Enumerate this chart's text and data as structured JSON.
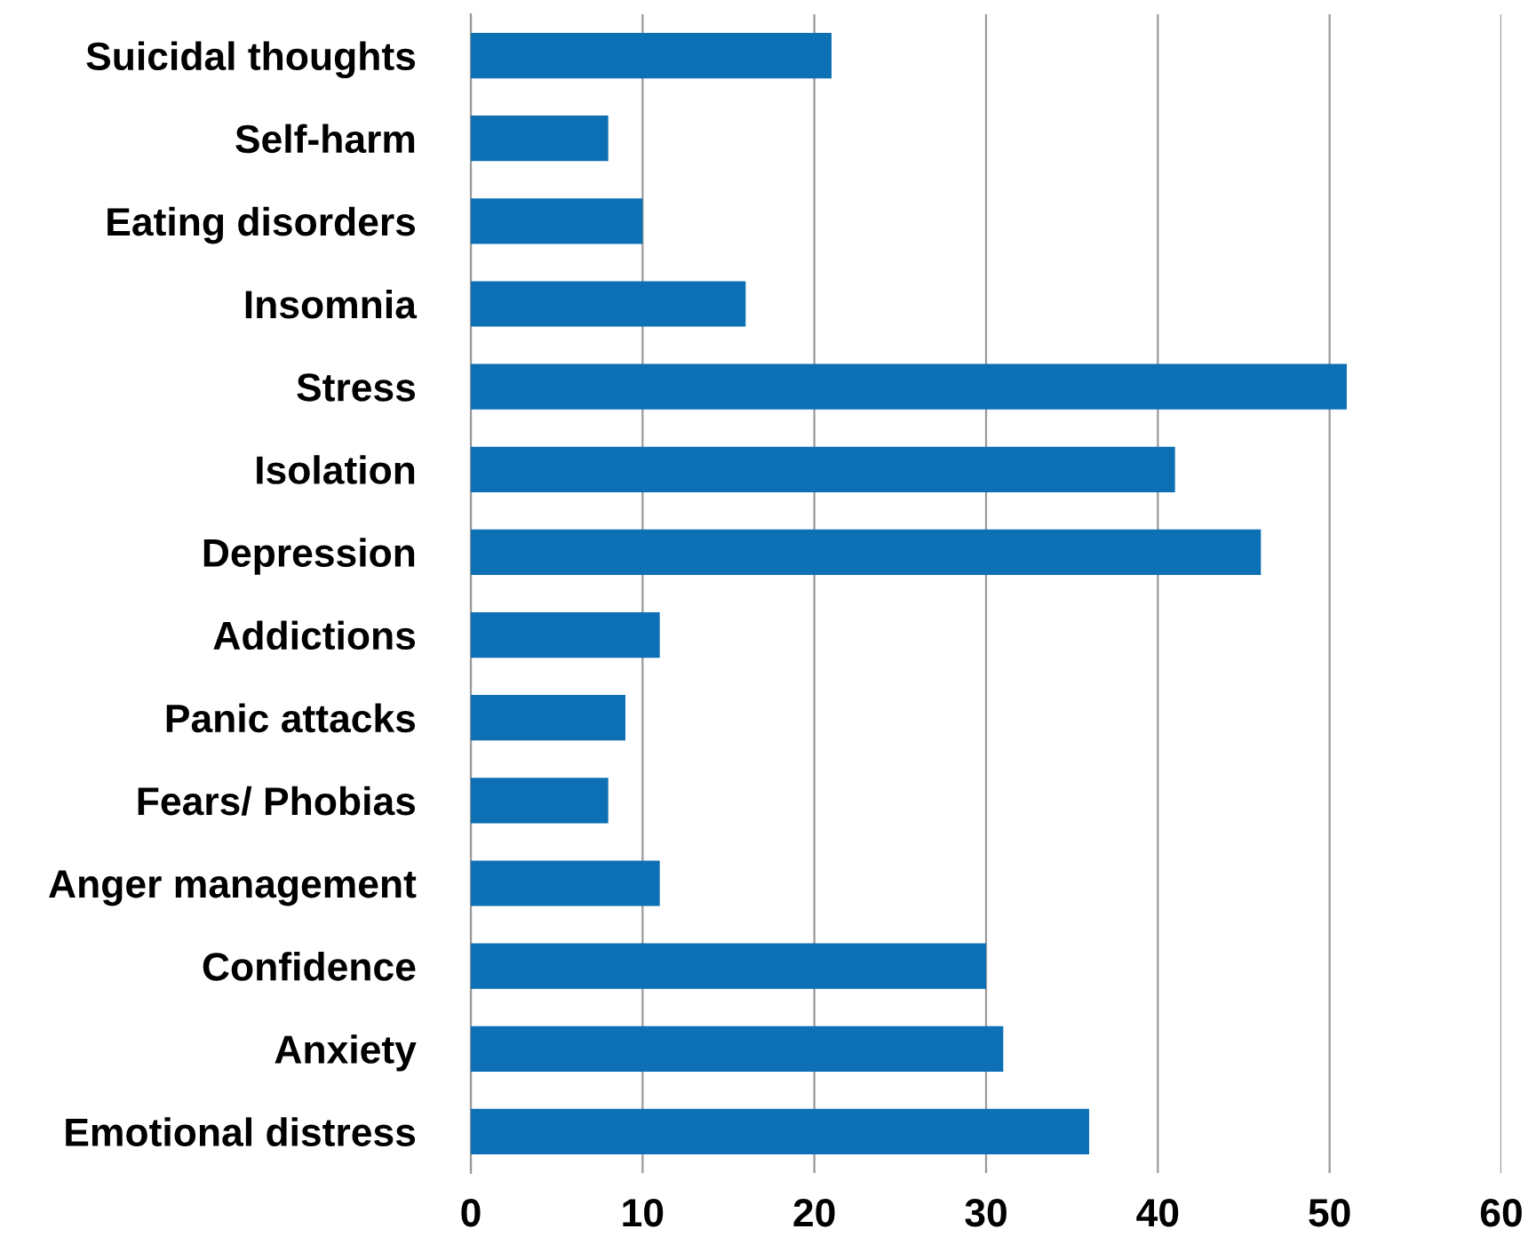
{
  "chart_data": {
    "type": "bar",
    "orientation": "horizontal",
    "categories": [
      "Suicidal thoughts",
      "Self-harm",
      "Eating disorders",
      "Insomnia",
      "Stress",
      "Isolation",
      "Depression",
      "Addictions",
      "Panic attacks",
      "Fears/ Phobias",
      "Anger management",
      "Confidence",
      "Anxiety",
      "Emotional distress"
    ],
    "values": [
      21,
      8,
      10,
      16,
      51,
      41,
      46,
      11,
      9,
      8,
      11,
      30,
      31,
      36
    ],
    "color": "#0e70b4",
    "xlim": [
      0,
      60
    ],
    "xticks": [
      0,
      10,
      20,
      30,
      40,
      50,
      60
    ],
    "grid": "x"
  }
}
